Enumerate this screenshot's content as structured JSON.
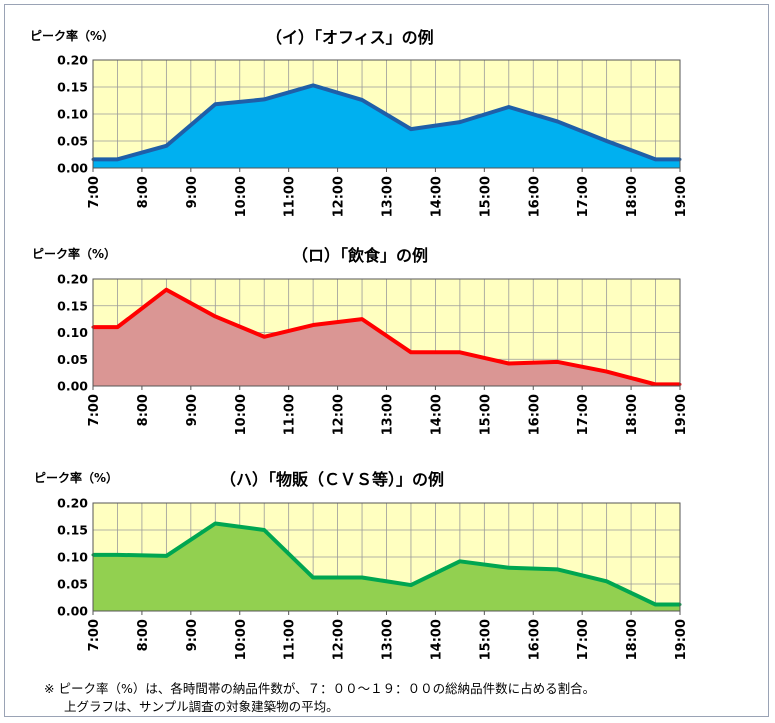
{
  "chart_data": [
    {
      "type": "area",
      "title": "（イ）「オフィス」の例",
      "ylabel": "ピーク率（%）",
      "x_ticks": [
        "7:00",
        "8:00",
        "9:00",
        "10:00",
        "11:00",
        "12:00",
        "13:00",
        "14:00",
        "15:00",
        "16:00",
        "17:00",
        "18:00",
        "19:00"
      ],
      "x": [
        7.0,
        7.5,
        8.5,
        9.5,
        10.5,
        11.5,
        12.5,
        13.5,
        14.5,
        15.5,
        16.5,
        17.5,
        18.5,
        19.0
      ],
      "values": [
        0.016,
        0.016,
        0.041,
        0.118,
        0.127,
        0.153,
        0.126,
        0.072,
        0.085,
        0.113,
        0.086,
        0.05,
        0.016,
        0.016
      ],
      "y_ticks": [
        "0.00",
        "0.05",
        "0.10",
        "0.15",
        "0.20"
      ],
      "ylim": [
        0,
        0.2
      ],
      "xlim": [
        7,
        19
      ],
      "grid": true,
      "colors": {
        "fill": "#00b0f0",
        "line": "#1f5fa8",
        "plot_bg": "#ffffc0"
      }
    },
    {
      "type": "area",
      "title": "（ロ）「飲食」の例",
      "ylabel": "ピーク率（%）",
      "x_ticks": [
        "7:00",
        "8:00",
        "9:00",
        "10:00",
        "11:00",
        "12:00",
        "13:00",
        "14:00",
        "15:00",
        "16:00",
        "17:00",
        "18:00",
        "19:00"
      ],
      "x": [
        7.0,
        7.5,
        8.5,
        9.5,
        10.5,
        11.5,
        12.5,
        13.5,
        14.5,
        15.5,
        16.5,
        17.5,
        18.5,
        19.0
      ],
      "values": [
        0.11,
        0.11,
        0.18,
        0.13,
        0.092,
        0.114,
        0.125,
        0.063,
        0.063,
        0.042,
        0.045,
        0.027,
        0.003,
        0.003
      ],
      "y_ticks": [
        "0.00",
        "0.05",
        "0.10",
        "0.15",
        "0.20"
      ],
      "ylim": [
        0,
        0.2
      ],
      "xlim": [
        7,
        19
      ],
      "grid": true,
      "colors": {
        "fill": "#da9694",
        "line": "#ff0000",
        "plot_bg": "#ffffc0"
      }
    },
    {
      "type": "area",
      "title": "（ハ）「物販（ＣＶＳ等）」の例",
      "ylabel": "ピーク率（%）",
      "x_ticks": [
        "7:00",
        "8:00",
        "9:00",
        "10:00",
        "11:00",
        "12:00",
        "13:00",
        "14:00",
        "15:00",
        "16:00",
        "17:00",
        "18:00",
        "19:00"
      ],
      "x": [
        7.0,
        7.5,
        8.5,
        9.5,
        10.5,
        11.5,
        12.5,
        13.5,
        14.5,
        15.5,
        16.5,
        17.5,
        18.5,
        19.0
      ],
      "values": [
        0.104,
        0.104,
        0.102,
        0.162,
        0.15,
        0.062,
        0.062,
        0.048,
        0.092,
        0.08,
        0.077,
        0.055,
        0.012,
        0.012
      ],
      "y_ticks": [
        "0.00",
        "0.05",
        "0.10",
        "0.15",
        "0.20"
      ],
      "ylim": [
        0,
        0.2
      ],
      "xlim": [
        7,
        19
      ],
      "grid": true,
      "colors": {
        "fill": "#92d050",
        "line": "#00a651",
        "plot_bg": "#ffffc0"
      }
    }
  ],
  "footnote": {
    "line1": "※ ピーク率（%）は、各時間帯の納品件数が、７：００～１９：００の総納品件数に占める割合。",
    "line2": "上グラフは、サンプル調査の対象建築物の平均。"
  }
}
